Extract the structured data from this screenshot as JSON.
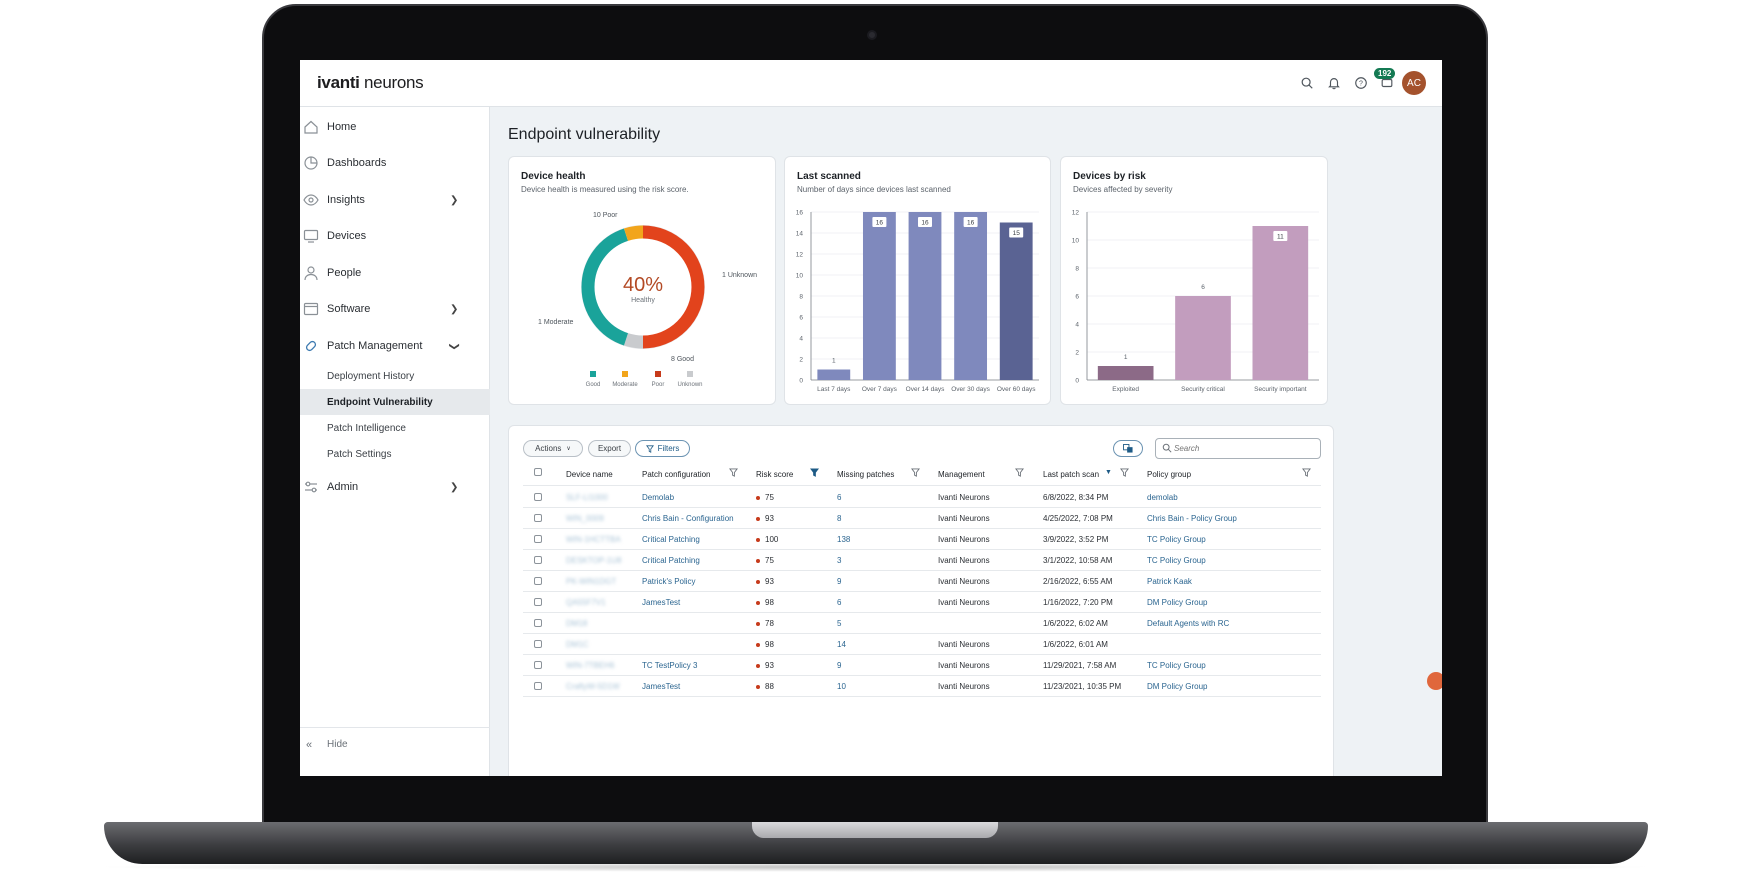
{
  "app": {
    "brand_bold": "ivanti",
    "brand_light": " neurons",
    "notification_count": "192",
    "user_initials": "AC"
  },
  "sidebar": {
    "items": [
      {
        "label": "Home"
      },
      {
        "label": "Dashboards"
      },
      {
        "label": "Insights"
      },
      {
        "label": "Devices"
      },
      {
        "label": "People"
      },
      {
        "label": "Software"
      },
      {
        "label": "Patch Management"
      },
      {
        "label": "Admin"
      }
    ],
    "sub_items": [
      {
        "label": "Deployment History"
      },
      {
        "label": "Endpoint Vulnerability"
      },
      {
        "label": "Patch Intelligence"
      },
      {
        "label": "Patch Settings"
      }
    ],
    "hide_label": "Hide"
  },
  "page": {
    "title": "Endpoint vulnerability"
  },
  "cards": {
    "device_health": {
      "title": "Device health",
      "subtitle": "Device health is measured using the risk score.",
      "center_value": "40%",
      "center_label": "Healthy",
      "slice_labels": [
        "10 Poor",
        "1 Unknown",
        "8 Good",
        "1 Moderate"
      ],
      "legend": [
        "Good",
        "Moderate",
        "Poor",
        "Unknown"
      ]
    },
    "last_scanned": {
      "title": "Last scanned",
      "subtitle": "Number of days since devices last scanned"
    },
    "devices_by_risk": {
      "title": "Devices by risk",
      "subtitle": "Devices affected by severity"
    }
  },
  "chart_data": [
    {
      "type": "pie",
      "title": "Device health",
      "categories": [
        "Poor",
        "Unknown",
        "Good",
        "Moderate"
      ],
      "values": [
        10,
        1,
        8,
        1
      ],
      "colors": [
        "#e2431c",
        "#c9cbce",
        "#1aa39a",
        "#f2a51c"
      ]
    },
    {
      "type": "bar",
      "title": "Last scanned",
      "categories": [
        "Last 7 days",
        "Over 7 days",
        "Over 14 days",
        "Over 30 days",
        "Over 60 days"
      ],
      "values": [
        1,
        16,
        16,
        16,
        15
      ],
      "colors": [
        "#7f89bd",
        "#7f89bd",
        "#7f89bd",
        "#7f89bd",
        "#5a6393"
      ],
      "ylim": [
        0,
        16
      ],
      "yticks": [
        0,
        2,
        4,
        6,
        8,
        10,
        12,
        14,
        16
      ]
    },
    {
      "type": "bar",
      "title": "Devices by risk",
      "categories": [
        "Exploited",
        "Security critical",
        "Security important"
      ],
      "values": [
        1,
        6,
        11
      ],
      "colors": [
        "#8c6a87",
        "#c29dbe",
        "#c29dbe"
      ],
      "ylim": [
        0,
        12
      ],
      "yticks": [
        0,
        2,
        4,
        6,
        8,
        10,
        12
      ]
    }
  ],
  "table": {
    "actions_label": "Actions",
    "export_label": "Export",
    "filters_label": "Filters",
    "search_placeholder": "Search",
    "columns": [
      "Device name",
      "Patch configuration",
      "Risk score",
      "Missing patches",
      "Management",
      "Last patch scan",
      "Policy group"
    ],
    "rows": [
      {
        "device": "SLF-LI1000",
        "config": "Demolab",
        "risk": "75",
        "missing": "6",
        "mgmt": "Ivanti Neurons",
        "scan": "6/8/2022, 8:34 PM",
        "policy": "demolab"
      },
      {
        "device": "WIN_0009",
        "config": "Chris Bain - Configuration",
        "risk": "93",
        "missing": "8",
        "mgmt": "Ivanti Neurons",
        "scan": "4/25/2022, 7:08 PM",
        "policy": "Chris Bain - Policy Group"
      },
      {
        "device": "WIN-1HCTTBA",
        "config": "Critical Patching",
        "risk": "100",
        "missing": "138",
        "mgmt": "Ivanti Neurons",
        "scan": "3/9/2022, 3:52 PM",
        "policy": "TC Policy Group"
      },
      {
        "device": "DESKTOP-1U8",
        "config": "Critical Patching",
        "risk": "75",
        "missing": "3",
        "mgmt": "Ivanti Neurons",
        "scan": "3/1/2022, 10:58 AM",
        "policy": "TC Policy Group"
      },
      {
        "device": "PK-WIN1DGT",
        "config": "Patrick's Policy",
        "risk": "93",
        "missing": "9",
        "mgmt": "Ivanti Neurons",
        "scan": "2/16/2022, 6:55 AM",
        "policy": "Patrick Kaak"
      },
      {
        "device": "QA55F7V1",
        "config": "JamesTest",
        "risk": "98",
        "missing": "6",
        "mgmt": "Ivanti Neurons",
        "scan": "1/16/2022, 7:20 PM",
        "policy": "DM Policy Group"
      },
      {
        "device": "DM18",
        "config": "",
        "risk": "78",
        "missing": "5",
        "mgmt": "",
        "scan": "1/6/2022, 6:02 AM",
        "policy": "Default Agents with RC"
      },
      {
        "device": "DM1C",
        "config": "",
        "risk": "98",
        "missing": "14",
        "mgmt": "Ivanti Neurons",
        "scan": "1/6/2022, 6:01 AM",
        "policy": ""
      },
      {
        "device": "WIN-7TBEH6",
        "config": "TC TestPolicy 3",
        "risk": "93",
        "missing": "9",
        "mgmt": "Ivanti Neurons",
        "scan": "11/29/2021, 7:58 AM",
        "policy": "TC Policy Group"
      },
      {
        "device": "CraftyW-5D1W",
        "config": "JamesTest",
        "risk": "88",
        "missing": "10",
        "mgmt": "Ivanti Neurons",
        "scan": "11/23/2021, 10:35 PM",
        "policy": "DM Policy Group"
      }
    ]
  }
}
